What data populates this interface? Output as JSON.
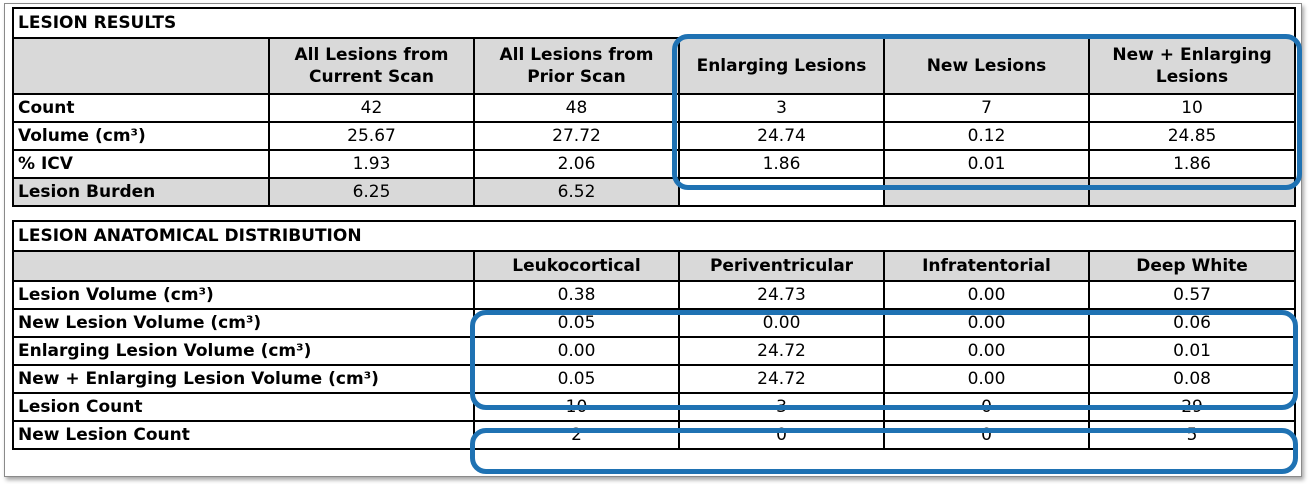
{
  "results": {
    "title": "LESION RESULTS",
    "columns": [
      "All Lesions from Current Scan",
      "All Lesions from Prior Scan",
      "Enlarging Lesions",
      "New Lesions",
      "New + Enlarging Lesions"
    ],
    "rows": [
      {
        "label": "Count",
        "values": [
          "42",
          "48",
          "3",
          "7",
          "10"
        ]
      },
      {
        "label": "Volume (cm³)",
        "values": [
          "25.67",
          "27.72",
          "24.74",
          "0.12",
          "24.85"
        ]
      },
      {
        "label": "% ICV",
        "values": [
          "1.93",
          "2.06",
          "1.86",
          "0.01",
          "1.86"
        ]
      },
      {
        "label": "Lesion Burden",
        "values": [
          "6.25",
          "6.52",
          "",
          "",
          ""
        ]
      }
    ]
  },
  "distribution": {
    "title": "LESION ANATOMICAL DISTRIBUTION",
    "columns": [
      "Leukocortical",
      "Periventricular",
      "Infratentorial",
      "Deep White"
    ],
    "rows": [
      {
        "label": "Lesion Volume (cm³)",
        "values": [
          "0.38",
          "24.73",
          "0.00",
          "0.57"
        ]
      },
      {
        "label": "New Lesion Volume (cm³)",
        "values": [
          "0.05",
          "0.00",
          "0.00",
          "0.06"
        ]
      },
      {
        "label": "Enlarging Lesion Volume (cm³)",
        "values": [
          "0.00",
          "24.72",
          "0.00",
          "0.01"
        ]
      },
      {
        "label": "New + Enlarging Lesion Volume (cm³)",
        "values": [
          "0.05",
          "24.72",
          "0.00",
          "0.08"
        ]
      },
      {
        "label": "Lesion Count",
        "values": [
          "10",
          "3",
          "0",
          "29"
        ]
      },
      {
        "label": "New Lesion Count",
        "values": [
          "2",
          "0",
          "0",
          "5"
        ]
      }
    ]
  },
  "colors": {
    "highlight": "#1f72b3",
    "header_bg": "#d9d9d9"
  }
}
